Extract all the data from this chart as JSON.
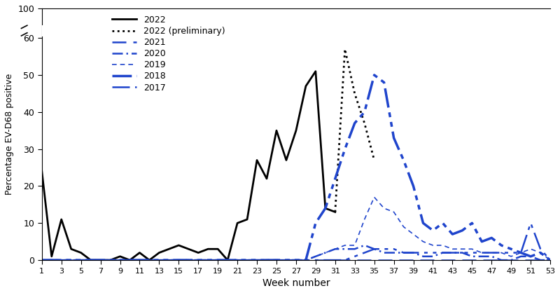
{
  "xlabel": "Week number",
  "ylabel": "Percentage EV-D68 positive",
  "xlim": [
    1,
    53
  ],
  "xticks": [
    1,
    3,
    5,
    7,
    9,
    11,
    13,
    15,
    17,
    19,
    21,
    23,
    25,
    27,
    29,
    31,
    33,
    35,
    37,
    39,
    41,
    43,
    45,
    47,
    49,
    51,
    53
  ],
  "yticks_data": [
    0,
    10,
    20,
    30,
    40,
    50,
    60,
    100
  ],
  "ytick_labels": [
    "0",
    "10",
    "20",
    "30",
    "40",
    "50",
    "60",
    "100"
  ],
  "blue": "#1f44cc",
  "series_2022": {
    "weeks": [
      1,
      2,
      3,
      4,
      5,
      6,
      7,
      8,
      9,
      10,
      11,
      12,
      13,
      14,
      15,
      16,
      17,
      18,
      19,
      20,
      21,
      22,
      23,
      24,
      25,
      26,
      27,
      28,
      29,
      30,
      31
    ],
    "values": [
      24,
      1,
      11,
      3,
      2,
      0,
      0,
      0,
      1,
      0,
      2,
      0,
      2,
      3,
      4,
      3,
      2,
      3,
      3,
      0,
      10,
      11,
      27,
      22,
      35,
      27,
      35,
      47,
      51,
      14,
      13
    ]
  },
  "series_2022p": {
    "weeks": [
      31,
      32,
      33,
      34,
      35
    ],
    "values": [
      13,
      57,
      45,
      37,
      27
    ]
  },
  "series_2021": {
    "weeks": [
      1,
      2,
      3,
      4,
      5,
      6,
      7,
      8,
      9,
      10,
      11,
      12,
      13,
      14,
      15,
      16,
      17,
      18,
      19,
      20,
      21,
      22,
      23,
      24,
      25,
      26,
      27,
      28,
      29,
      30,
      31,
      32,
      33,
      34,
      35,
      36,
      37,
      38,
      39,
      40,
      41,
      42,
      43,
      44,
      45,
      46,
      47,
      48,
      49,
      50,
      51,
      52,
      53
    ],
    "values": [
      0,
      0,
      0,
      0,
      0,
      0,
      0,
      0,
      0,
      0,
      0,
      0,
      0,
      0,
      0,
      0,
      0,
      0,
      0,
      0,
      0,
      0,
      0,
      0,
      0,
      0,
      0,
      0,
      0,
      0,
      0,
      0,
      0,
      0,
      0,
      0,
      0,
      0,
      0,
      0,
      0,
      0,
      0,
      0,
      0,
      0,
      0,
      0,
      0,
      0,
      0,
      0,
      0
    ]
  },
  "series_2020": {
    "weeks": [
      1,
      2,
      3,
      4,
      5,
      6,
      7,
      8,
      9,
      10,
      11,
      12,
      13,
      14,
      15,
      16,
      17,
      18,
      19,
      20,
      21,
      22,
      23,
      24,
      25,
      26,
      27,
      28,
      29,
      30,
      31,
      32,
      33,
      34,
      35,
      36,
      37,
      38,
      39,
      40,
      41,
      42,
      43,
      44,
      45,
      46,
      47,
      48,
      49,
      50,
      51,
      52,
      53
    ],
    "values": [
      0,
      0,
      0,
      0,
      0,
      0,
      0,
      0,
      0,
      0,
      0,
      0,
      0,
      0,
      0,
      0,
      0,
      0,
      0,
      0,
      0,
      0,
      0,
      0,
      0,
      0,
      0,
      0,
      1,
      2,
      3,
      3,
      3,
      4,
      3,
      2,
      2,
      2,
      2,
      1,
      1,
      2,
      2,
      2,
      1,
      1,
      1,
      0,
      0,
      1,
      1,
      0,
      0
    ]
  },
  "series_2019": {
    "weeks": [
      1,
      2,
      3,
      4,
      5,
      6,
      7,
      8,
      9,
      10,
      11,
      12,
      13,
      14,
      15,
      16,
      17,
      18,
      19,
      20,
      21,
      22,
      23,
      24,
      25,
      26,
      27,
      28,
      29,
      30,
      31,
      32,
      33,
      34,
      35,
      36,
      37,
      38,
      39,
      40,
      41,
      42,
      43,
      44,
      45,
      46,
      47,
      48,
      49,
      50,
      51,
      52,
      53
    ],
    "values": [
      0,
      0,
      0,
      0,
      0,
      0,
      0,
      0,
      0,
      0,
      0,
      0,
      0,
      0,
      0,
      0,
      0,
      0,
      0,
      0,
      0,
      0,
      0,
      0,
      0,
      0,
      0,
      0,
      1,
      2,
      3,
      4,
      4,
      11,
      17,
      14,
      13,
      9,
      7,
      5,
      4,
      4,
      3,
      3,
      3,
      2,
      2,
      2,
      1,
      2,
      3,
      2,
      0
    ]
  },
  "series_2018": {
    "weeks": [
      1,
      2,
      3,
      4,
      5,
      6,
      7,
      8,
      9,
      10,
      11,
      12,
      13,
      14,
      15,
      16,
      17,
      18,
      19,
      20,
      21,
      22,
      23,
      24,
      25,
      26,
      27,
      28,
      29,
      30,
      31,
      32,
      33,
      34,
      35,
      36,
      37,
      38,
      39,
      40,
      41,
      42,
      43,
      44,
      45,
      46,
      47,
      48,
      49,
      50,
      51,
      52,
      53
    ],
    "values": [
      0,
      0,
      0,
      0,
      0,
      0,
      0,
      0,
      0,
      0,
      0,
      0,
      0,
      0,
      0,
      0,
      0,
      0,
      0,
      0,
      0,
      0,
      0,
      0,
      0,
      0,
      0,
      0,
      10,
      14,
      22,
      30,
      37,
      40,
      50,
      48,
      33,
      27,
      20,
      10,
      8,
      10,
      7,
      8,
      10,
      5,
      6,
      4,
      3,
      2,
      1,
      2,
      0
    ]
  },
  "series_2017": {
    "weeks": [
      1,
      2,
      3,
      4,
      5,
      6,
      7,
      8,
      9,
      10,
      11,
      12,
      13,
      14,
      15,
      16,
      17,
      18,
      19,
      20,
      21,
      22,
      23,
      24,
      25,
      26,
      27,
      28,
      29,
      30,
      31,
      32,
      33,
      34,
      35,
      36,
      37,
      38,
      39,
      40,
      41,
      42,
      43,
      44,
      45,
      46,
      47,
      48,
      49,
      50,
      51,
      52,
      53
    ],
    "values": [
      0,
      0,
      0,
      0,
      0,
      0,
      0,
      0,
      0,
      0,
      0,
      0,
      0,
      0,
      0,
      0,
      0,
      0,
      0,
      0,
      0,
      0,
      0,
      0,
      0,
      0,
      0,
      0,
      0,
      0,
      0,
      0,
      1,
      2,
      3,
      3,
      3,
      2,
      2,
      2,
      2,
      2,
      2,
      2,
      2,
      2,
      2,
      2,
      2,
      2,
      10,
      3,
      0
    ]
  }
}
